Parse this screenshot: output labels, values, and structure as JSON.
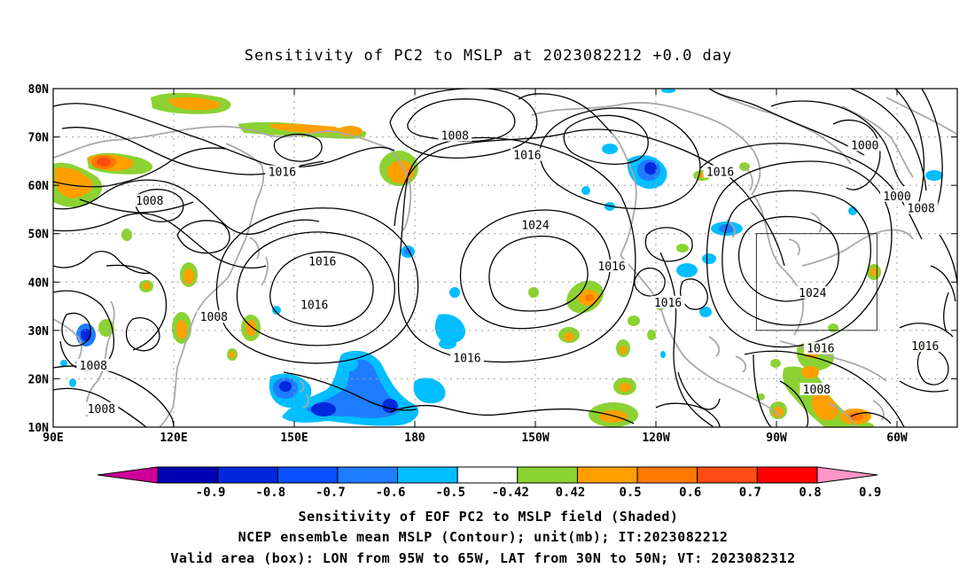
{
  "title": "Sensitivity of PC2 to MSLP at 2023082212 +0.0 day",
  "lon_ticks": [
    {
      "lon": 90,
      "label": "90E"
    },
    {
      "lon": 120,
      "label": "120E"
    },
    {
      "lon": 150,
      "label": "150E"
    },
    {
      "lon": 180,
      "label": "180"
    },
    {
      "lon": 210,
      "label": "150W"
    },
    {
      "lon": 240,
      "label": "120W"
    },
    {
      "lon": 270,
      "label": "90W"
    },
    {
      "lon": 300,
      "label": "60W"
    }
  ],
  "lat_ticks": [
    {
      "lat": 80,
      "label": "80N"
    },
    {
      "lat": 70,
      "label": "70N"
    },
    {
      "lat": 60,
      "label": "60N"
    },
    {
      "lat": 50,
      "label": "50N"
    },
    {
      "lat": 40,
      "label": "40N"
    },
    {
      "lat": 30,
      "label": "30N"
    },
    {
      "lat": 20,
      "label": "20N"
    },
    {
      "lat": 10,
      "label": "10N"
    }
  ],
  "map_extent": {
    "lon_min": 90,
    "lon_max": 315,
    "lat_min": 10,
    "lat_max": 80
  },
  "valid_box": {
    "lon_west": 265,
    "lon_east": 295,
    "lat_south": 30,
    "lat_north": 50
  },
  "contour_labels": [
    {
      "text": "1008",
      "lon": 190,
      "lat": 70
    },
    {
      "text": "1016",
      "lon": 147,
      "lat": 62.5
    },
    {
      "text": "1016",
      "lon": 208,
      "lat": 66
    },
    {
      "text": "1016",
      "lon": 256,
      "lat": 62.5
    },
    {
      "text": "1000",
      "lon": 292,
      "lat": 68
    },
    {
      "text": "1000",
      "lon": 300,
      "lat": 57.5
    },
    {
      "text": "1008",
      "lon": 306,
      "lat": 55
    },
    {
      "text": "1008",
      "lon": 114,
      "lat": 56.5
    },
    {
      "text": "1024",
      "lon": 210,
      "lat": 51.5
    },
    {
      "text": "1016",
      "lon": 157,
      "lat": 44
    },
    {
      "text": "1016",
      "lon": 229,
      "lat": 43
    },
    {
      "text": "1024",
      "lon": 279,
      "lat": 37.5
    },
    {
      "text": "1016",
      "lon": 155,
      "lat": 35
    },
    {
      "text": "1016",
      "lon": 243,
      "lat": 35.5
    },
    {
      "text": "1008",
      "lon": 130,
      "lat": 32.5
    },
    {
      "text": "1016",
      "lon": 281,
      "lat": 26
    },
    {
      "text": "1016",
      "lon": 307,
      "lat": 26.5
    },
    {
      "text": "1016",
      "lon": 193,
      "lat": 24
    },
    {
      "text": "1008",
      "lon": 100,
      "lat": 22.5
    },
    {
      "text": "1008",
      "lon": 280,
      "lat": 17.5
    },
    {
      "text": "1008",
      "lon": 102,
      "lat": 13.5
    }
  ],
  "colorbar": {
    "labels": [
      "-0.9",
      "-0.8",
      "-0.7",
      "-0.6",
      "-0.5",
      "-0.42",
      "0.42",
      "0.5",
      "0.6",
      "0.7",
      "0.8",
      "0.9"
    ],
    "colors": [
      "#cc0099",
      "#0000b4",
      "#0028dc",
      "#0a50ff",
      "#1e7cff",
      "#00beff",
      "#ffffff",
      "#8cd232",
      "#ffa000",
      "#ff7800",
      "#ff4b14",
      "#ff0000",
      "#ff96c8"
    ]
  },
  "captions": [
    "Sensitivity of EOF PC2 to MSLP field (Shaded)",
    "NCEP ensemble mean MSLP (Contour); unit(mb); IT:2023082212",
    "Valid area (box): LON from 95W to 65W, LAT from 30N to 50N; VT: 2023082312"
  ],
  "colors": {
    "coast": "#a9a9a9",
    "contour": "#000000",
    "grid": "#a0a0a0",
    "green": "#8cd232",
    "orange": "#ffa000",
    "darkorange": "#ff7800",
    "red": "#ff4b14",
    "lightblue": "#00beff",
    "blue": "#1e7cff",
    "darkblue": "#0028dc"
  }
}
